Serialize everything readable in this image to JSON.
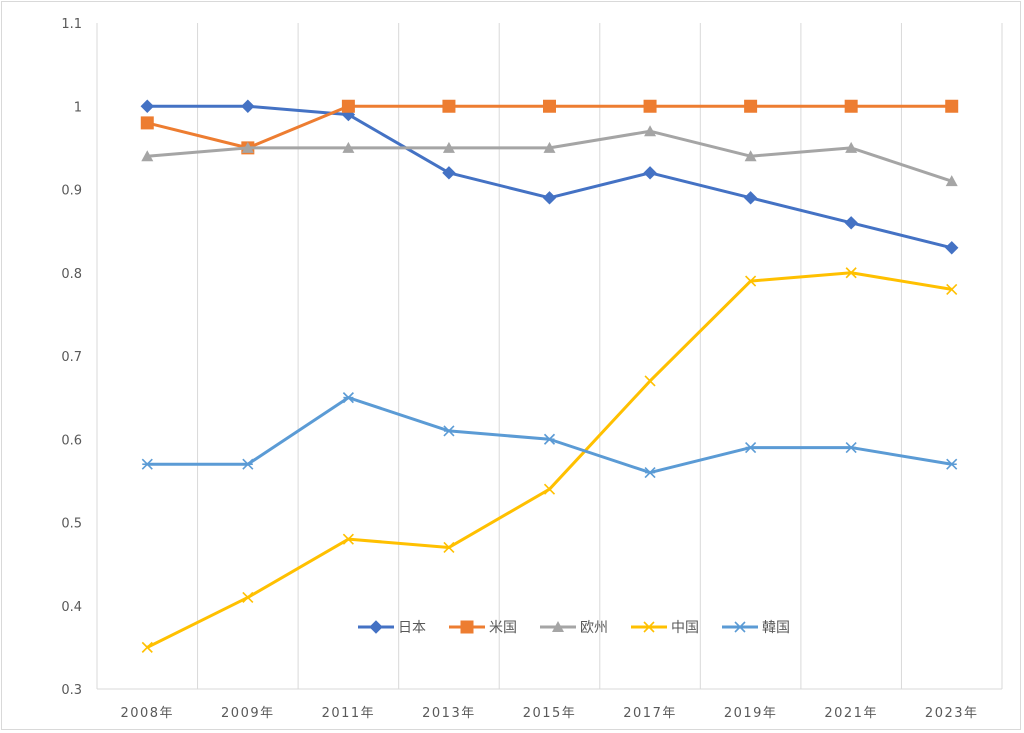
{
  "chart_data": {
    "type": "line",
    "title": "",
    "xlabel": "",
    "ylabel": "",
    "categories": [
      "2008年",
      "2009年",
      "2011年",
      "2013年",
      "2015年",
      "2017年",
      "2019年",
      "2021年",
      "2023年"
    ],
    "ylim": [
      0.3,
      1.1
    ],
    "yticks": [
      "0.3",
      "0.4",
      "0.5",
      "0.6",
      "0.7",
      "0.8",
      "0.9",
      "1",
      "1.1"
    ],
    "grid": "vertical",
    "legend_position": "inside-bottom-center",
    "series": [
      {
        "name": "日本",
        "color": "#4472C4",
        "marker": "diamond",
        "values": [
          1.0,
          1.0,
          0.99,
          0.92,
          0.89,
          0.92,
          0.89,
          0.86,
          0.83
        ]
      },
      {
        "name": "米国",
        "color": "#ED7D31",
        "marker": "square",
        "values": [
          0.98,
          0.95,
          1.0,
          1.0,
          1.0,
          1.0,
          1.0,
          1.0,
          1.0
        ]
      },
      {
        "name": "欧州",
        "color": "#A5A5A5",
        "marker": "triangle",
        "values": [
          0.94,
          0.95,
          0.95,
          0.95,
          0.95,
          0.97,
          0.94,
          0.95,
          0.91
        ]
      },
      {
        "name": "中国",
        "color": "#FFC000",
        "marker": "x",
        "values": [
          0.35,
          0.41,
          0.48,
          0.47,
          0.54,
          0.67,
          0.79,
          0.8,
          0.78
        ]
      },
      {
        "name": "韓国",
        "color": "#5B9BD5",
        "marker": "star",
        "values": [
          0.57,
          0.57,
          0.65,
          0.61,
          0.6,
          0.56,
          0.59,
          0.59,
          0.57
        ]
      }
    ]
  }
}
